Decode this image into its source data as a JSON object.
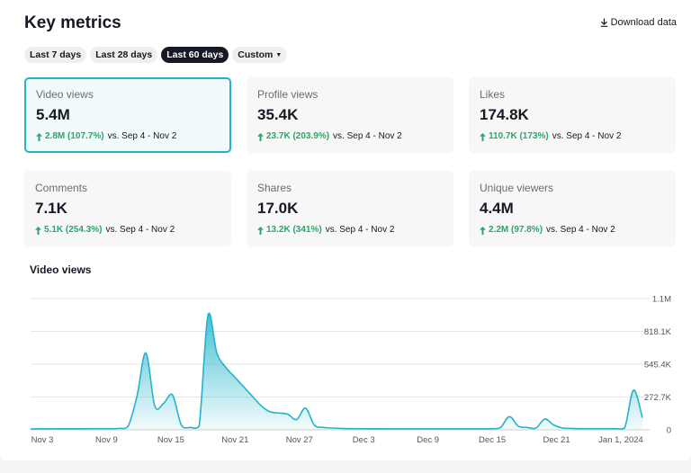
{
  "header": {
    "title": "Key metrics",
    "download_label": "Download data"
  },
  "range_tabs": [
    {
      "label": "Last 7 days",
      "active": false
    },
    {
      "label": "Last 28 days",
      "active": false
    },
    {
      "label": "Last 60 days",
      "active": true
    },
    {
      "label": "Custom",
      "active": false
    }
  ],
  "metrics": [
    {
      "label": "Video views",
      "value": "5.4M",
      "change": "2.8M (107.7%)",
      "vs": "vs.  Sep 4 - Nov 2"
    },
    {
      "label": "Profile views",
      "value": "35.4K",
      "change": "23.7K (203.9%)",
      "vs": "vs.  Sep 4 - Nov 2"
    },
    {
      "label": "Likes",
      "value": "174.8K",
      "change": "110.7K (173%)",
      "vs": "vs.  Sep 4 - Nov 2"
    },
    {
      "label": "Comments",
      "value": "7.1K",
      "change": "5.1K (254.3%)",
      "vs": "vs.  Sep 4 - Nov 2"
    },
    {
      "label": "Shares",
      "value": "17.0K",
      "change": "13.2K (341%)",
      "vs": "vs.  Sep 4 - Nov 2"
    },
    {
      "label": "Unique viewers",
      "value": "4.4M",
      "change": "2.2M (97.8%)",
      "vs": "vs.  Sep 4 - Nov 2"
    }
  ],
  "colors": {
    "accent": "#23b4cb",
    "positive": "#2ba56a",
    "text": "#161823"
  },
  "chart_title": "Video views",
  "chart_data": {
    "type": "area",
    "x_tick_labels": [
      "Nov 3",
      "Nov 9",
      "Nov 15",
      "Nov 21",
      "Nov 27",
      "Dec 3",
      "Dec 9",
      "Dec 15",
      "Dec 21",
      "Jan 1, 2024"
    ],
    "y_tick_labels": [
      "0",
      "272.7K",
      "545.4K",
      "818.1K",
      "1.1M"
    ],
    "ylim": [
      0,
      1090800
    ],
    "y_axis_side": "right",
    "grid": true,
    "series": [
      {
        "values": [
          8000,
          8000,
          8000,
          9000,
          9000,
          9000,
          9000,
          10000,
          10000,
          10000,
          12000,
          30000,
          280000,
          640000,
          200000,
          220000,
          290000,
          40000,
          20000,
          30000,
          950000,
          640000,
          520000,
          440000,
          360000,
          280000,
          200000,
          150000,
          140000,
          130000,
          85000,
          180000,
          40000,
          20000,
          15000,
          12000,
          10000,
          10000,
          9000,
          9000,
          9000,
          8000,
          8000,
          8000,
          8000,
          8000,
          8000,
          8000,
          8000,
          8000,
          8000,
          8000,
          10000,
          20000,
          110000,
          30000,
          20000,
          15000,
          90000,
          40000,
          15000,
          12000,
          10000,
          10000,
          10000,
          10000,
          10000,
          15000,
          330000,
          100000
        ]
      }
    ]
  }
}
